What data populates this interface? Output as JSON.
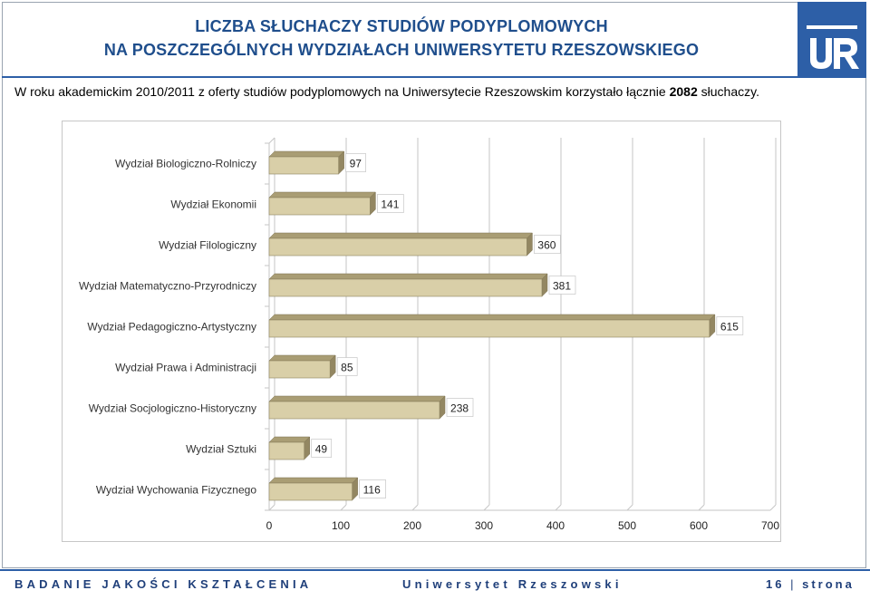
{
  "header": {
    "title_line1": "LICZBA SŁUCHACZY STUDIÓW PODYPLOMOWYCH",
    "title_line2": "NA POSZCZEGÓLNYCH WYDZIAŁACH UNIWERSYTETU RZESZOWSKIEGO",
    "logo_text": "UR"
  },
  "intro": {
    "text_before": "W roku akademickim 2010/2011 z oferty studiów podyplomowych na Uniwersytecie Rzeszowskim korzystało łącznie ",
    "total": "2082",
    "text_after": " słuchaczy."
  },
  "chart_data": {
    "type": "bar",
    "orientation": "horizontal",
    "style": "3d",
    "categories": [
      "Wydział Biologiczno-Rolniczy",
      "Wydział Ekonomii",
      "Wydział Filologiczny",
      "Wydział Matematyczno-Przyrodniczy",
      "Wydział Pedagogiczno-Artystyczny",
      "Wydział Prawa i Administracji",
      "Wydział Socjologiczno-Historyczny",
      "Wydział Sztuki",
      "Wydział Wychowania Fizycznego"
    ],
    "values": [
      97,
      141,
      360,
      381,
      615,
      85,
      238,
      49,
      116
    ],
    "data_labels": [
      "97",
      "141",
      "360",
      "381",
      "615",
      "85",
      "238",
      "49",
      "116"
    ],
    "xlim": [
      0,
      700
    ],
    "x_ticks": [
      0,
      100,
      200,
      300,
      400,
      500,
      600,
      700
    ],
    "x_tick_labels": [
      "0",
      "100",
      "200",
      "300",
      "400",
      "500",
      "600",
      "700"
    ],
    "grid": true,
    "legend": false,
    "colors": {
      "bar_front": "#d9cfa8",
      "bar_top": "#a99d74",
      "bar_side": "#938762",
      "grid": "#c6c6c6",
      "label_box": "#ffffff"
    }
  },
  "footer": {
    "left": "BADANIE JAKOŚCI KSZTAŁCENIA",
    "center": "Uniwersytet Rzeszowski",
    "page_number": "16",
    "separator": "|",
    "page_word": "strona"
  },
  "colors": {
    "accent": "#2d5fa7",
    "title": "#1f4e8c"
  }
}
